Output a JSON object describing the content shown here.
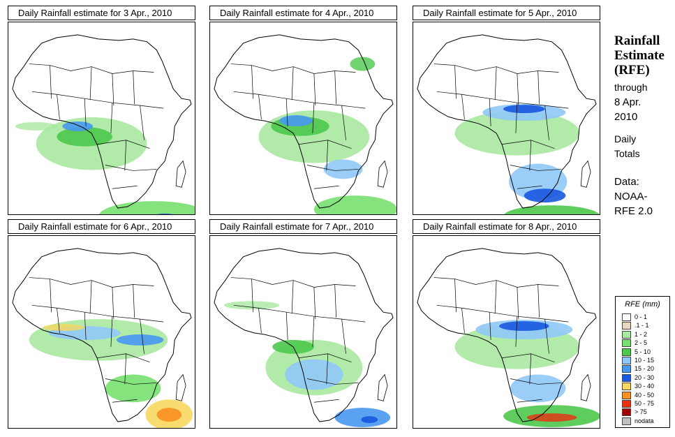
{
  "panels": [
    {
      "title": "Daily Rainfall estimate for  3 Apr., 2010"
    },
    {
      "title": "Daily Rainfall estimate for  4 Apr., 2010"
    },
    {
      "title": "Daily Rainfall estimate for  5 Apr., 2010"
    },
    {
      "title": "Daily Rainfall estimate for  6 Apr., 2010"
    },
    {
      "title": "Daily Rainfall estimate for  7 Apr., 2010"
    },
    {
      "title": "Daily Rainfall estimate for  8 Apr., 2010"
    }
  ],
  "side": {
    "title_1": "Rainfall",
    "title_2": "Estimate",
    "title_3": "(RFE)",
    "through": "through",
    "date_1": "8 Apr.",
    "date_2": "2010",
    "daily": "Daily",
    "totals": "Totals",
    "data_label": "Data:",
    "source_1": "NOAA-",
    "source_2": "RFE 2.0"
  },
  "legend": {
    "title": "RFE (mm)",
    "items": [
      {
        "label": "0 - 1",
        "color": "#ffffff"
      },
      {
        "label": ".1 - 1",
        "color": "#e8d8c0"
      },
      {
        "label": "1 - 2",
        "color": "#a8e8a0"
      },
      {
        "label": "2 - 5",
        "color": "#78e070"
      },
      {
        "label": "5 - 10",
        "color": "#4cc84c"
      },
      {
        "label": "10 - 15",
        "color": "#90c8f8"
      },
      {
        "label": "15 - 20",
        "color": "#4898f0"
      },
      {
        "label": "20 - 30",
        "color": "#1858e0"
      },
      {
        "label": "30 - 40",
        "color": "#f8d860"
      },
      {
        "label": "40 - 50",
        "color": "#f89020"
      },
      {
        "label": "50 - 75",
        "color": "#e83010"
      },
      {
        "label": "> 75",
        "color": "#a00000"
      },
      {
        "label": "nodata",
        "color": "#c0c0c0"
      }
    ]
  }
}
